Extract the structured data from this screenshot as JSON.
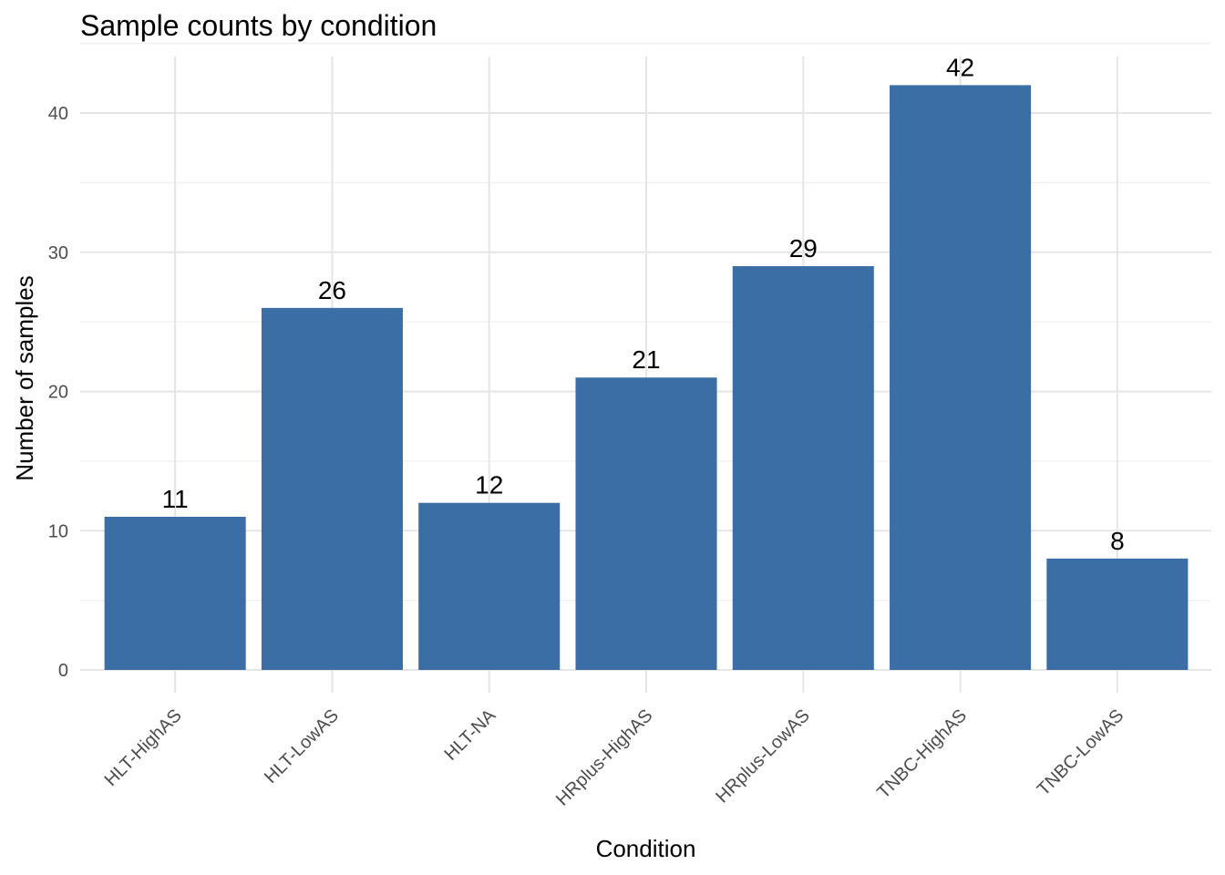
{
  "chart_data": {
    "type": "bar",
    "title": "Sample counts by condition",
    "xlabel": "Condition",
    "ylabel": "Number of samples",
    "categories": [
      "HLT-HighAS",
      "HLT-LowAS",
      "HLT-NA",
      "HRplus-HighAS",
      "HRplus-LowAS",
      "TNBC-HighAS",
      "TNBC-LowAS"
    ],
    "values": [
      11,
      26,
      12,
      21,
      29,
      42,
      8
    ],
    "data_labels": [
      "11",
      "26",
      "12",
      "21",
      "29",
      "42",
      "8"
    ],
    "ylim": [
      0,
      44
    ],
    "yticks": [
      0,
      10,
      20,
      30,
      40
    ],
    "ytick_labels": [
      "0",
      "10",
      "20",
      "30",
      "40"
    ],
    "grid": true,
    "legend": "none",
    "bar_color": "#3A6EA5",
    "gridline_color": "#E5E5E5"
  }
}
